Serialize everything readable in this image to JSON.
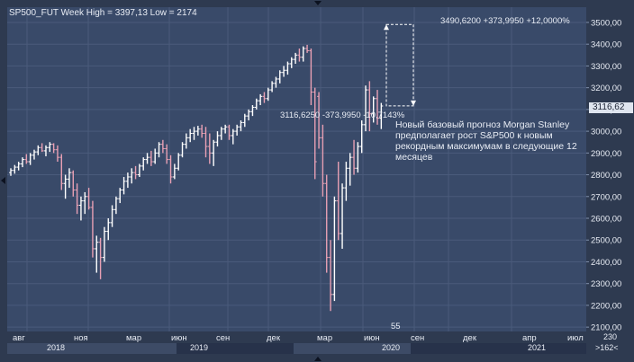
{
  "header": {
    "title": "SP500_FUT Week High = 3397,13 Low = 2174"
  },
  "annotations": {
    "target": "3490,6200  +373,9950  +12,0000%",
    "drop": "3116,6250  -373,9950  -10,7143%",
    "note": "Новый базовый прогноз Morgan Stanley предполагает рост S&P500 к новым рекордным максимумам в следующие 12 месяцев",
    "bottom_number": "55"
  },
  "price_badge": "3116,62",
  "y_ticks": [
    "3500,00",
    "3400,00",
    "3300,00",
    "3200,00",
    "3100,00",
    "3000,00",
    "2900,00",
    "2800,00",
    "2700,00",
    "2600,00",
    "2500,00",
    "2400,00",
    "2300,00",
    "2200,00",
    "2100,00"
  ],
  "x_months": [
    "авг",
    "ноя",
    "мар",
    "июн",
    "сен",
    "дек",
    "мар",
    "июн",
    "сен",
    "дек",
    "апр",
    "июл"
  ],
  "years": [
    "2018",
    "2019",
    "2020",
    "2021"
  ],
  "corner": {
    "top": "230",
    "bottom": ">162<"
  },
  "colors": {
    "up": "#ffffff",
    "down": "#e8a0b4",
    "background": "#394a69",
    "grid": "#4a5b7b"
  },
  "chart_data": {
    "type": "ohlc",
    "title": "SP500_FUT Week High = 3397,13 Low = 2174",
    "ylim": [
      2080,
      3570
    ],
    "x_axis_labels": [
      "авг",
      "ноя",
      "мар",
      "июн",
      "сен",
      "дек",
      "мар",
      "июн",
      "сен",
      "дек",
      "апр",
      "июл"
    ],
    "series": [
      {
        "values": [
          [
            2810,
            2830,
            2795,
            2820
          ],
          [
            2820,
            2845,
            2805,
            2835
          ],
          [
            2835,
            2860,
            2820,
            2850
          ],
          [
            2850,
            2880,
            2835,
            2870
          ],
          [
            2870,
            2895,
            2850,
            2860
          ],
          [
            2860,
            2900,
            2845,
            2890
          ],
          [
            2890,
            2915,
            2870,
            2905
          ],
          [
            2905,
            2935,
            2890,
            2925
          ],
          [
            2925,
            2945,
            2905,
            2910
          ],
          [
            2910,
            2935,
            2885,
            2925
          ],
          [
            2925,
            2950,
            2905,
            2940
          ],
          [
            2940,
            2945,
            2900,
            2915
          ],
          [
            2915,
            2935,
            2860,
            2880
          ],
          [
            2880,
            2895,
            2730,
            2760
          ],
          [
            2760,
            2800,
            2690,
            2780
          ],
          [
            2780,
            2830,
            2740,
            2810
          ],
          [
            2810,
            2820,
            2700,
            2730
          ],
          [
            2730,
            2760,
            2620,
            2660
          ],
          [
            2660,
            2700,
            2590,
            2680
          ],
          [
            2680,
            2720,
            2620,
            2700
          ],
          [
            2700,
            2740,
            2640,
            2650
          ],
          [
            2650,
            2680,
            2420,
            2460
          ],
          [
            2460,
            2520,
            2350,
            2490
          ],
          [
            2490,
            2510,
            2320,
            2420
          ],
          [
            2420,
            2560,
            2400,
            2540
          ],
          [
            2540,
            2600,
            2500,
            2580
          ],
          [
            2580,
            2660,
            2560,
            2640
          ],
          [
            2640,
            2700,
            2620,
            2690
          ],
          [
            2690,
            2740,
            2670,
            2730
          ],
          [
            2730,
            2790,
            2710,
            2770
          ],
          [
            2770,
            2810,
            2740,
            2790
          ],
          [
            2790,
            2830,
            2760,
            2810
          ],
          [
            2810,
            2840,
            2780,
            2800
          ],
          [
            2800,
            2850,
            2790,
            2840
          ],
          [
            2840,
            2880,
            2820,
            2870
          ],
          [
            2870,
            2900,
            2850,
            2880
          ],
          [
            2880,
            2910,
            2840,
            2860
          ],
          [
            2860,
            2920,
            2850,
            2900
          ],
          [
            2900,
            2950,
            2880,
            2940
          ],
          [
            2940,
            2960,
            2900,
            2920
          ],
          [
            2920,
            2940,
            2850,
            2870
          ],
          [
            2870,
            2890,
            2760,
            2790
          ],
          [
            2790,
            2850,
            2780,
            2830
          ],
          [
            2830,
            2900,
            2820,
            2890
          ],
          [
            2890,
            2950,
            2880,
            2940
          ],
          [
            2940,
            2990,
            2920,
            2970
          ],
          [
            2970,
            3010,
            2950,
            2990
          ],
          [
            2990,
            3020,
            2960,
            3000
          ],
          [
            3000,
            3025,
            2980,
            3010
          ],
          [
            3010,
            3030,
            2970,
            2990
          ],
          [
            2990,
            3020,
            2880,
            2930
          ],
          [
            2930,
            2990,
            2850,
            2900
          ],
          [
            2900,
            2960,
            2840,
            2950
          ],
          [
            2950,
            3000,
            2930,
            2980
          ],
          [
            2980,
            3020,
            2960,
            3010
          ],
          [
            3010,
            3030,
            2990,
            3020
          ],
          [
            3020,
            3030,
            2960,
            2980
          ],
          [
            2980,
            3010,
            2940,
            3000
          ],
          [
            3000,
            3030,
            2980,
            3020
          ],
          [
            3020,
            3050,
            3000,
            3040
          ],
          [
            3040,
            3080,
            3020,
            3070
          ],
          [
            3070,
            3100,
            3050,
            3090
          ],
          [
            3090,
            3120,
            3070,
            3110
          ],
          [
            3110,
            3150,
            3100,
            3140
          ],
          [
            3140,
            3170,
            3120,
            3160
          ],
          [
            3160,
            3180,
            3130,
            3150
          ],
          [
            3150,
            3200,
            3140,
            3190
          ],
          [
            3190,
            3230,
            3180,
            3220
          ],
          [
            3220,
            3250,
            3200,
            3240
          ],
          [
            3240,
            3280,
            3220,
            3270
          ],
          [
            3270,
            3300,
            3250,
            3280
          ],
          [
            3280,
            3320,
            3260,
            3310
          ],
          [
            3310,
            3340,
            3290,
            3330
          ],
          [
            3330,
            3360,
            3310,
            3350
          ],
          [
            3350,
            3380,
            3320,
            3340
          ],
          [
            3340,
            3390,
            3320,
            3380
          ],
          [
            3380,
            3397,
            3360,
            3370
          ],
          [
            3370,
            3380,
            3120,
            3180
          ],
          [
            3180,
            3200,
            2780,
            2860
          ],
          [
            3160,
            3180,
            2920,
            2970
          ],
          [
            2970,
            3030,
            2700,
            2760
          ],
          [
            2760,
            2800,
            2350,
            2420
          ],
          [
            2420,
            2500,
            2174,
            2250
          ],
          [
            2250,
            2700,
            2220,
            2680
          ],
          [
            2680,
            2860,
            2500,
            2530
          ],
          [
            2530,
            2760,
            2460,
            2740
          ],
          [
            2740,
            2860,
            2680,
            2830
          ],
          [
            2830,
            2900,
            2750,
            2880
          ],
          [
            2880,
            2960,
            2800,
            2830
          ],
          [
            2830,
            2950,
            2810,
            2930
          ],
          [
            2930,
            3050,
            2900,
            3030
          ],
          [
            3030,
            3210,
            3000,
            3190
          ],
          [
            3190,
            3230,
            3000,
            3080
          ],
          [
            3080,
            3160,
            3040,
            3150
          ],
          [
            3150,
            3190,
            3030,
            3060
          ],
          [
            3060,
            3130,
            3010,
            3116
          ]
        ]
      }
    ]
  }
}
